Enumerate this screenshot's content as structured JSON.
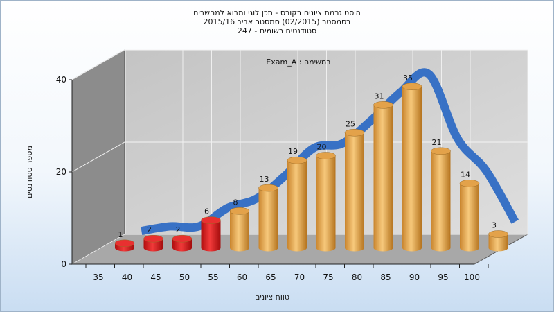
{
  "chart_data": {
    "type": "bar",
    "title_lines": [
      "היסטוגרמת ציונים בקורס - תכן לוגי ומבוא למחשבים",
      "בסמסטר  (02/2015)  סמסטר אביב 2015/16",
      "סטודנטים רשומים - 247"
    ],
    "annotation": "במשימה : Exam_A",
    "xlabel": "טווח ציונים",
    "ylabel": "מספר סטודנטים",
    "categories": [
      "35",
      "40",
      "45",
      "50",
      "55",
      "60",
      "65",
      "70",
      "75",
      "80",
      "85",
      "90",
      "95",
      "100"
    ],
    "values": [
      1,
      2,
      2,
      6,
      8,
      13,
      19,
      20,
      25,
      31,
      35,
      21,
      14,
      3
    ],
    "bar_colors": [
      "#d81818",
      "#d81818",
      "#d81818",
      "#d81818",
      "#e8a64a",
      "#e8a64a",
      "#e8a64a",
      "#e8a64a",
      "#e8a64a",
      "#e8a64a",
      "#e8a64a",
      "#e8a64a",
      "#e8a64a",
      "#e8a64a"
    ],
    "curve_color": "#2f6cc4",
    "ylim": [
      0,
      40
    ],
    "yticks": [
      0,
      20,
      40
    ],
    "grid": true,
    "style": "3d-cylinder"
  }
}
